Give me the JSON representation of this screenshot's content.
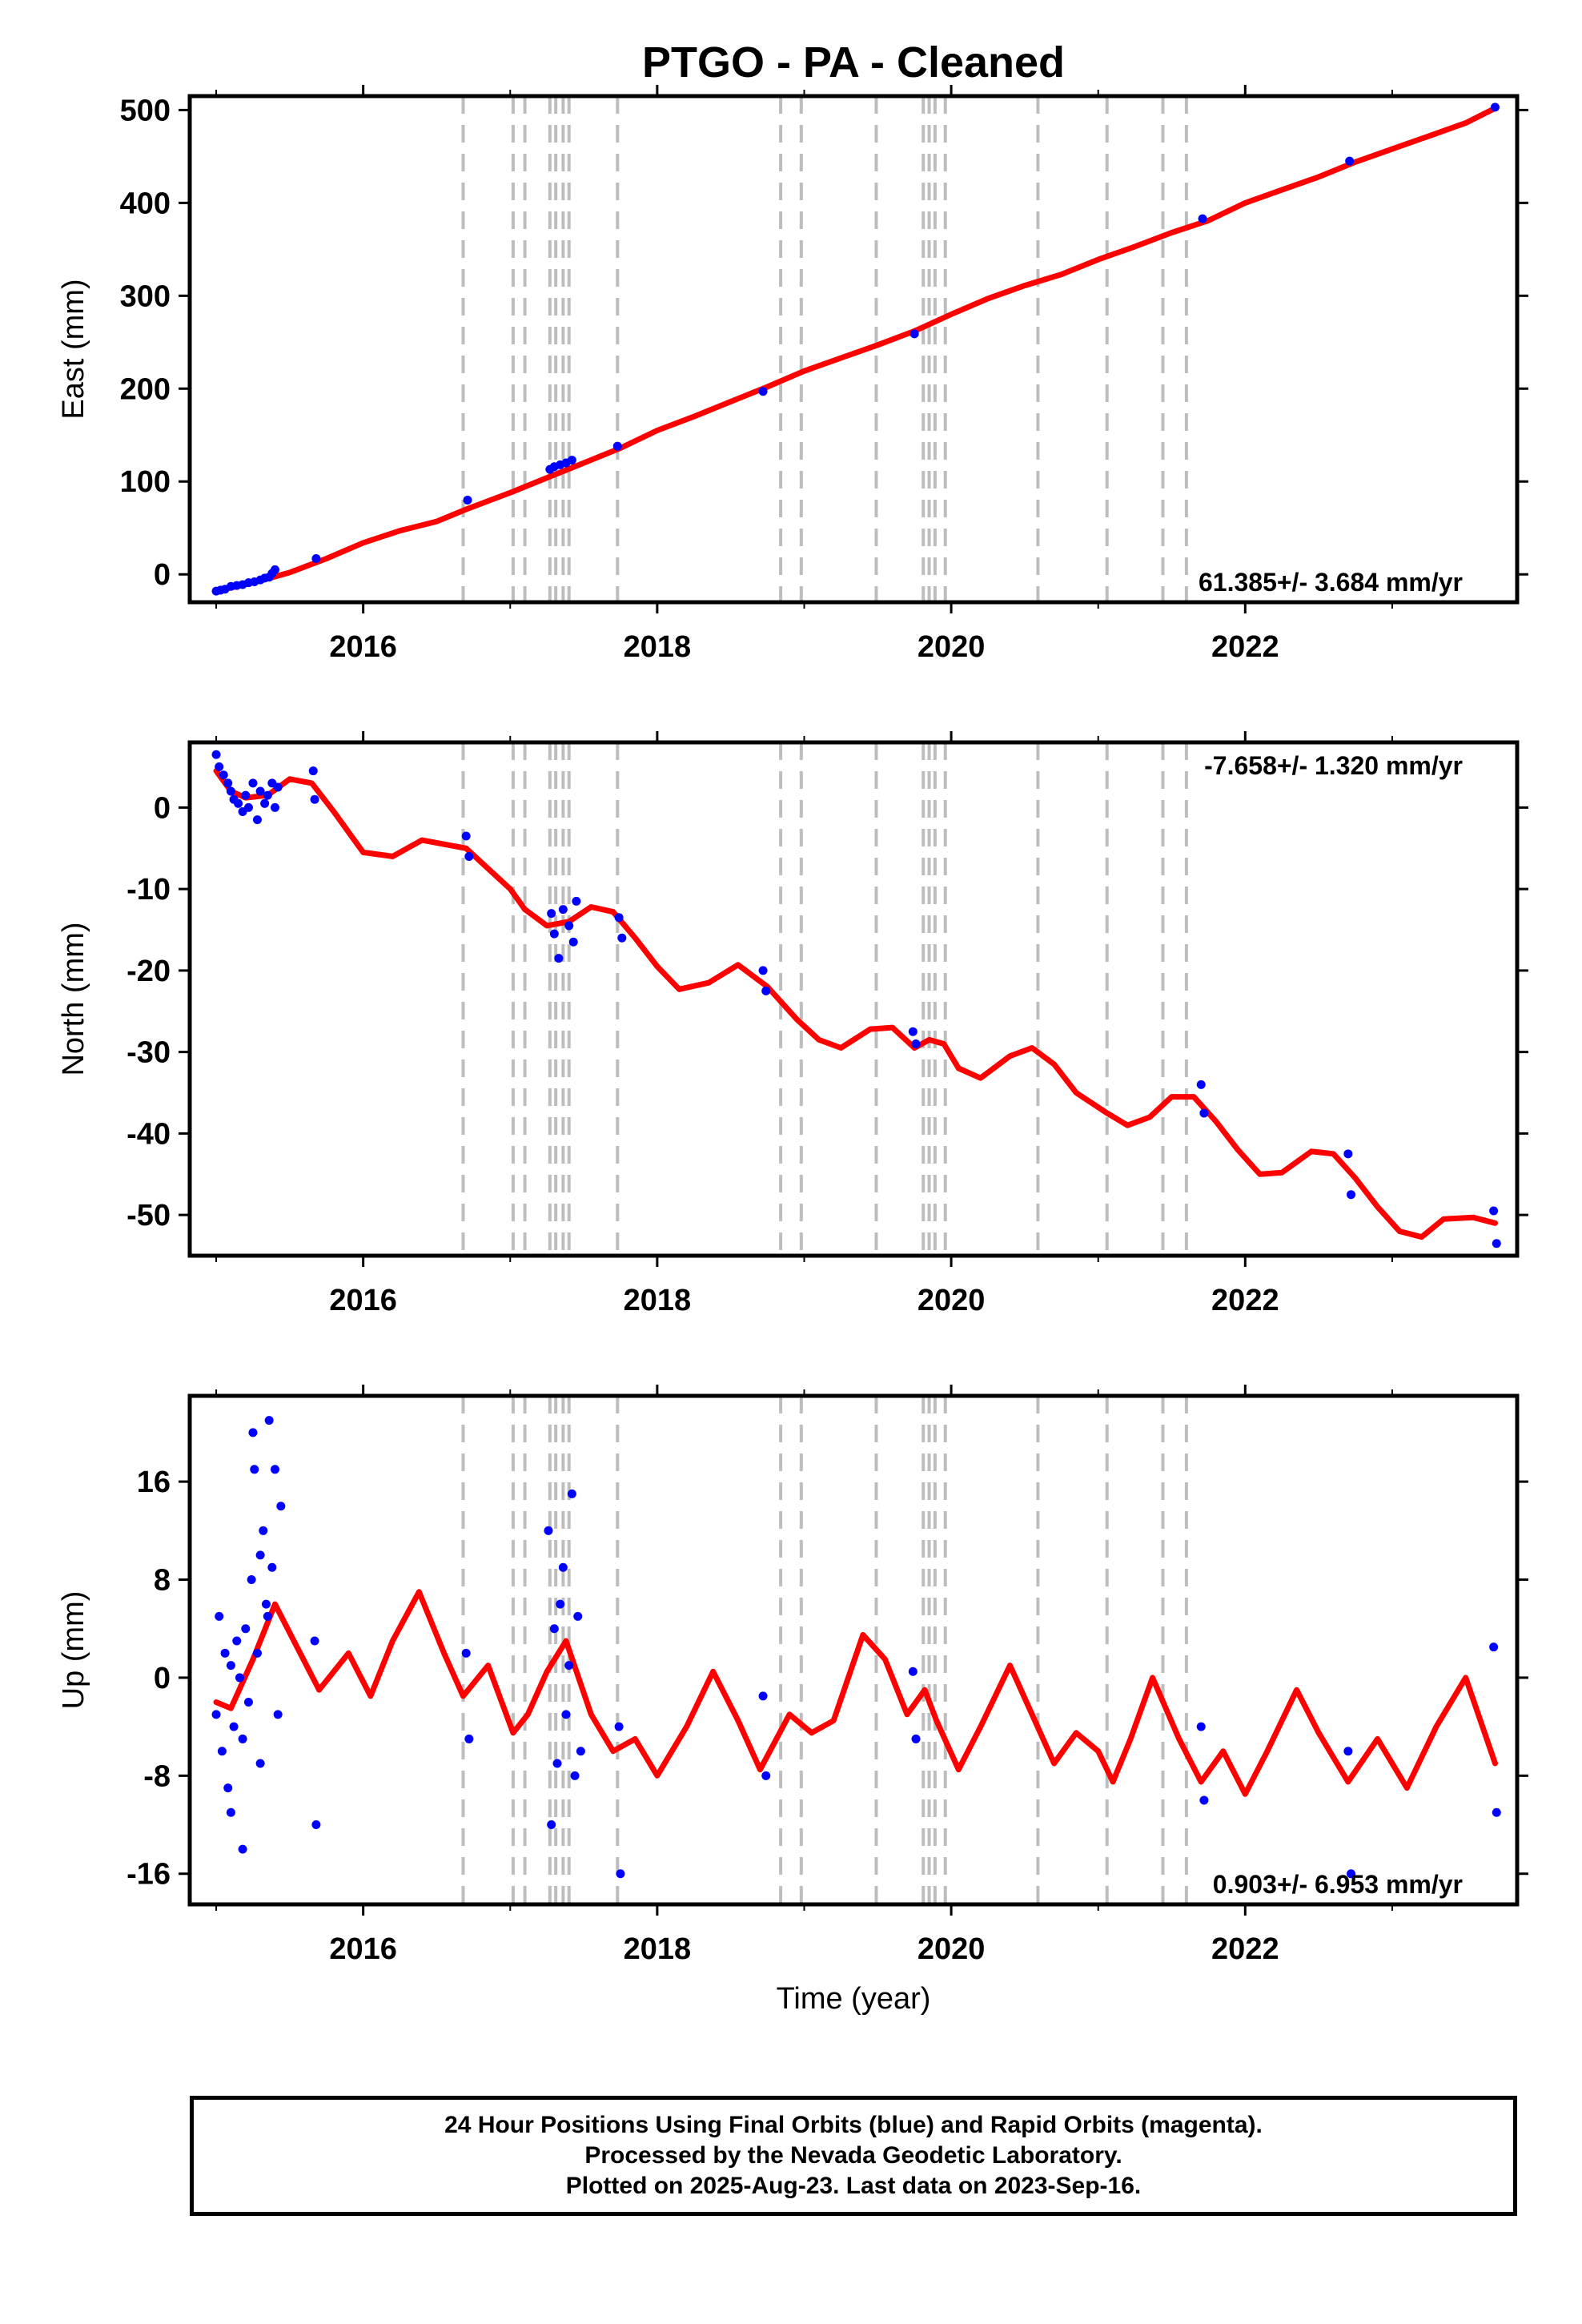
{
  "chart_data": [
    {
      "type": "line",
      "title": "PTGO  - PA - Cleaned",
      "ylabel": "East (mm)",
      "xlabel": "",
      "xlim": [
        2014.82,
        2023.85
      ],
      "ylim": [
        -30,
        515
      ],
      "xticks": [
        "2016",
        "2018",
        "2020",
        "2022"
      ],
      "yticks": [
        "0",
        "100",
        "200",
        "300",
        "400",
        "500"
      ],
      "rate_label": "61.385+/- 3.684 mm/yr",
      "rate_position": "bottom-right",
      "grid": false,
      "colors": {
        "data": "#0000ff",
        "model": "#ff0000",
        "steps": "#bdbdbd"
      },
      "steps": [
        2016.68,
        2017.02,
        2017.1,
        2017.27,
        2017.31,
        2017.36,
        2017.4,
        2017.73,
        2018.84,
        2018.98,
        2019.49,
        2019.81,
        2019.85,
        2019.89,
        2019.96,
        2020.59,
        2021.06,
        2021.44,
        2021.6
      ],
      "model": {
        "x": [
          2015.0,
          2015.25,
          2015.5,
          2015.75,
          2016.0,
          2016.25,
          2016.5,
          2016.7,
          2017.0,
          2017.25,
          2017.5,
          2017.75,
          2018.0,
          2018.25,
          2018.5,
          2018.75,
          2019.0,
          2019.25,
          2019.5,
          2019.75,
          2020.0,
          2020.25,
          2020.5,
          2020.75,
          2021.0,
          2021.25,
          2021.5,
          2021.75,
          2022.0,
          2022.25,
          2022.5,
          2022.75,
          2023.0,
          2023.25,
          2023.5,
          2023.7
        ],
        "y": [
          -18,
          -9,
          2,
          17,
          34,
          47,
          57,
          70,
          88,
          104,
          120,
          136,
          155,
          170,
          186,
          202,
          219,
          233,
          247,
          262,
          280,
          297,
          311,
          323,
          339,
          353,
          368,
          381,
          400,
          414,
          428,
          444,
          458,
          472,
          486,
          502
        ]
      },
      "points": {
        "x": [
          2015.0,
          2015.03,
          2015.06,
          2015.1,
          2015.14,
          2015.18,
          2015.22,
          2015.26,
          2015.3,
          2015.33,
          2015.36,
          2015.38,
          2015.4,
          2015.68,
          2016.71,
          2017.27,
          2017.3,
          2017.34,
          2017.38,
          2017.42,
          2017.73,
          2018.72,
          2019.75,
          2021.71,
          2022.71,
          2023.7
        ],
        "y": [
          -18,
          -17,
          -16,
          -13,
          -12,
          -11,
          -9,
          -8,
          -6,
          -4,
          -3,
          1,
          5,
          17,
          80,
          113,
          116,
          118,
          120,
          123,
          138,
          197,
          259,
          383,
          445,
          503
        ]
      }
    },
    {
      "type": "line",
      "title": "",
      "ylabel": "North (mm)",
      "xlabel": "",
      "xlim": [
        2014.82,
        2023.85
      ],
      "ylim": [
        -55,
        8
      ],
      "xticks": [
        "2016",
        "2018",
        "2020",
        "2022"
      ],
      "yticks": [
        "0",
        "-10",
        "-20",
        "-30",
        "-40",
        "-50"
      ],
      "rate_label": "-7.658+/- 1.320 mm/yr",
      "rate_position": "top-right",
      "grid": false,
      "colors": {
        "data": "#0000ff",
        "model": "#ff0000",
        "steps": "#bdbdbd"
      },
      "steps": [
        2016.68,
        2017.02,
        2017.1,
        2017.27,
        2017.31,
        2017.36,
        2017.4,
        2017.73,
        2018.84,
        2018.98,
        2019.49,
        2019.81,
        2019.85,
        2019.89,
        2019.96,
        2020.59,
        2021.06,
        2021.44,
        2021.6
      ],
      "model": {
        "x": [
          2015.0,
          2015.1,
          2015.2,
          2015.35,
          2015.5,
          2015.65,
          2015.8,
          2016.0,
          2016.2,
          2016.4,
          2016.55,
          2016.7,
          2016.85,
          2017.0,
          2017.1,
          2017.25,
          2017.4,
          2017.55,
          2017.7,
          2017.85,
          2018.0,
          2018.15,
          2018.35,
          2018.55,
          2018.75,
          2018.95,
          2019.1,
          2019.25,
          2019.45,
          2019.6,
          2019.75,
          2019.85,
          2019.95,
          2020.05,
          2020.2,
          2020.4,
          2020.55,
          2020.7,
          2020.85,
          2021.06,
          2021.2,
          2021.35,
          2021.5,
          2021.65,
          2021.8,
          2021.95,
          2022.1,
          2022.25,
          2022.45,
          2022.6,
          2022.75,
          2022.9,
          2023.05,
          2023.2,
          2023.35,
          2023.55,
          2023.7
        ],
        "y": [
          4.5,
          2.0,
          1.2,
          1.5,
          3.5,
          3.0,
          -0.5,
          -5.5,
          -6.0,
          -4.0,
          -4.5,
          -5.0,
          -7.5,
          -10.0,
          -12.5,
          -14.5,
          -14.0,
          -12.2,
          -12.8,
          -16.0,
          -19.5,
          -22.3,
          -21.5,
          -19.3,
          -22.0,
          -26.0,
          -28.5,
          -29.5,
          -27.2,
          -27.0,
          -29.5,
          -28.5,
          -29.0,
          -32.0,
          -33.2,
          -30.5,
          -29.5,
          -31.5,
          -35.0,
          -37.5,
          -39.0,
          -38.0,
          -35.5,
          -35.5,
          -38.5,
          -42.0,
          -45.0,
          -44.8,
          -42.2,
          -42.5,
          -45.5,
          -49.0,
          -52.0,
          -52.7,
          -50.5,
          -50.3,
          -51.0
        ]
      },
      "points": {
        "x": [
          2015.0,
          2015.02,
          2015.05,
          2015.08,
          2015.1,
          2015.12,
          2015.15,
          2015.18,
          2015.2,
          2015.22,
          2015.25,
          2015.28,
          2015.3,
          2015.33,
          2015.35,
          2015.38,
          2015.4,
          2015.42,
          2015.66,
          2015.67,
          2016.7,
          2016.72,
          2017.28,
          2017.3,
          2017.33,
          2017.36,
          2017.4,
          2017.43,
          2017.45,
          2017.74,
          2017.76,
          2018.72,
          2018.74,
          2019.74,
          2019.76,
          2021.7,
          2021.72,
          2022.7,
          2022.72,
          2023.69,
          2023.71
        ],
        "y": [
          6.5,
          5.0,
          4.0,
          3.0,
          2.0,
          1.0,
          0.5,
          -0.5,
          1.5,
          0.0,
          3.0,
          -1.5,
          2.0,
          0.5,
          1.5,
          3.0,
          0.0,
          2.5,
          4.5,
          1.0,
          -3.5,
          -6.0,
          -13.0,
          -15.5,
          -18.5,
          -12.5,
          -14.5,
          -16.5,
          -11.5,
          -13.5,
          -16.0,
          -20.0,
          -22.5,
          -27.5,
          -29.0,
          -34.0,
          -37.5,
          -42.5,
          -47.5,
          -49.5,
          -53.5
        ]
      }
    },
    {
      "type": "line",
      "title": "",
      "ylabel": "Up (mm)",
      "xlabel": "Time (year)",
      "xlim": [
        2014.82,
        2023.85
      ],
      "ylim": [
        -18.5,
        23
      ],
      "xticks": [
        "2016",
        "2018",
        "2020",
        "2022"
      ],
      "yticks": [
        "16",
        "8",
        "0",
        "-8",
        "-16"
      ],
      "rate_label": "0.903+/- 6.953 mm/yr",
      "rate_position": "bottom-right",
      "grid": false,
      "colors": {
        "data": "#0000ff",
        "model": "#ff0000",
        "steps": "#bdbdbd"
      },
      "steps": [
        2016.68,
        2017.02,
        2017.1,
        2017.27,
        2017.31,
        2017.36,
        2017.4,
        2017.73,
        2018.84,
        2018.98,
        2019.49,
        2019.81,
        2019.85,
        2019.89,
        2019.96,
        2020.59,
        2021.06,
        2021.44,
        2021.6
      ],
      "model": {
        "x": [
          2015.0,
          2015.1,
          2015.25,
          2015.4,
          2015.55,
          2015.7,
          2015.9,
          2016.05,
          2016.2,
          2016.38,
          2016.55,
          2016.68,
          2016.85,
          2017.02,
          2017.12,
          2017.25,
          2017.38,
          2017.55,
          2017.7,
          2017.85,
          2018.0,
          2018.2,
          2018.38,
          2018.55,
          2018.7,
          2018.9,
          2019.05,
          2019.2,
          2019.4,
          2019.55,
          2019.7,
          2019.82,
          2019.9,
          2020.05,
          2020.2,
          2020.4,
          2020.55,
          2020.7,
          2020.85,
          2021.0,
          2021.1,
          2021.22,
          2021.37,
          2021.55,
          2021.7,
          2021.85,
          2022.0,
          2022.15,
          2022.35,
          2022.5,
          2022.7,
          2022.9,
          2023.1,
          2023.3,
          2023.5,
          2023.7
        ],
        "y": [
          -2.0,
          -2.5,
          1.5,
          6.0,
          2.5,
          -1.0,
          2.0,
          -1.5,
          3.0,
          7.0,
          2.0,
          -1.5,
          1.0,
          -4.5,
          -3.0,
          0.5,
          3.0,
          -3.0,
          -6.0,
          -5.0,
          -8.0,
          -4.0,
          0.5,
          -3.5,
          -7.5,
          -3.0,
          -4.5,
          -3.5,
          3.5,
          1.5,
          -3.0,
          -1.0,
          -3.5,
          -7.5,
          -4.0,
          1.0,
          -3.0,
          -7.0,
          -4.5,
          -6.0,
          -8.5,
          -5.0,
          0.0,
          -5.0,
          -8.5,
          -6.0,
          -9.5,
          -6.0,
          -1.0,
          -4.5,
          -8.5,
          -5.0,
          -9.0,
          -4.0,
          0.0,
          -7.0
        ]
      },
      "points": {
        "x": [
          2015.0,
          2015.02,
          2015.04,
          2015.06,
          2015.08,
          2015.1,
          2015.12,
          2015.14,
          2015.16,
          2015.18,
          2015.2,
          2015.22,
          2015.24,
          2015.26,
          2015.28,
          2015.3,
          2015.32,
          2015.34,
          2015.36,
          2015.38,
          2015.4,
          2015.42,
          2015.44,
          2015.1,
          2015.18,
          2015.25,
          2015.3,
          2015.35,
          2015.67,
          2015.68,
          2016.7,
          2016.72,
          2017.26,
          2017.28,
          2017.3,
          2017.32,
          2017.34,
          2017.36,
          2017.38,
          2017.4,
          2017.42,
          2017.44,
          2017.46,
          2017.48,
          2017.74,
          2017.75,
          2018.72,
          2018.74,
          2019.74,
          2019.76,
          2021.7,
          2021.72,
          2022.7,
          2022.72,
          2023.69,
          2023.71
        ],
        "y": [
          -3,
          5,
          -6,
          2,
          -9,
          1,
          -4,
          3,
          0,
          -5,
          4,
          -2,
          8,
          17,
          2,
          -7,
          12,
          6,
          21,
          9,
          17,
          -3,
          14,
          -11,
          -14,
          20,
          10,
          5,
          3,
          -12,
          2,
          -5,
          12,
          -12,
          4,
          -7,
          6,
          9,
          -3,
          1,
          15,
          -8,
          5,
          -6,
          -4,
          -16,
          -1.5,
          -8,
          0.5,
          -5,
          -4,
          -10,
          -6,
          -16,
          2.5,
          -11
        ]
      }
    }
  ],
  "footer": {
    "line1": "24 Hour Positions Using Final Orbits (blue) and Rapid Orbits (magenta).",
    "line2": "Processed by the Nevada Geodetic Laboratory.",
    "line3": "Plotted on 2025-Aug-23. Last data on 2023-Sep-16."
  }
}
